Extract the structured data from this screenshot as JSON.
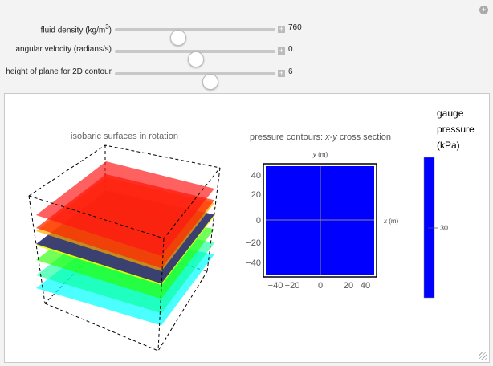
{
  "controls": [
    {
      "label": "fluid density (kg/m",
      "sup": "3",
      "label_end": ")",
      "value": "760",
      "fraction": 0.39
    },
    {
      "label": "angular velocity (radians/s)",
      "value": "0.",
      "fraction": 0.5
    },
    {
      "label": "height of plane for 2D contour",
      "value": "6",
      "fraction": 0.59
    }
  ],
  "plot3d": {
    "title": "isobaric surfaces in rotation"
  },
  "contour": {
    "title": "pressure contours: ",
    "title_italic": "x-y",
    "title_end": " cross section",
    "ylabel_var": "y",
    "ylabel_unit": " (m)",
    "xlabel_var": "x",
    "xlabel_unit": " (m)",
    "xticks": [
      "−40",
      "−20",
      "0",
      "20",
      "40"
    ],
    "yticks": [
      "40",
      "20",
      "0",
      "−20",
      "−40"
    ],
    "fill": "#0000ff"
  },
  "legend": {
    "line1": "gauge",
    "line2": "pressure",
    "line3": "(kPa)",
    "tick": "30",
    "color": "#0000ff"
  }
}
